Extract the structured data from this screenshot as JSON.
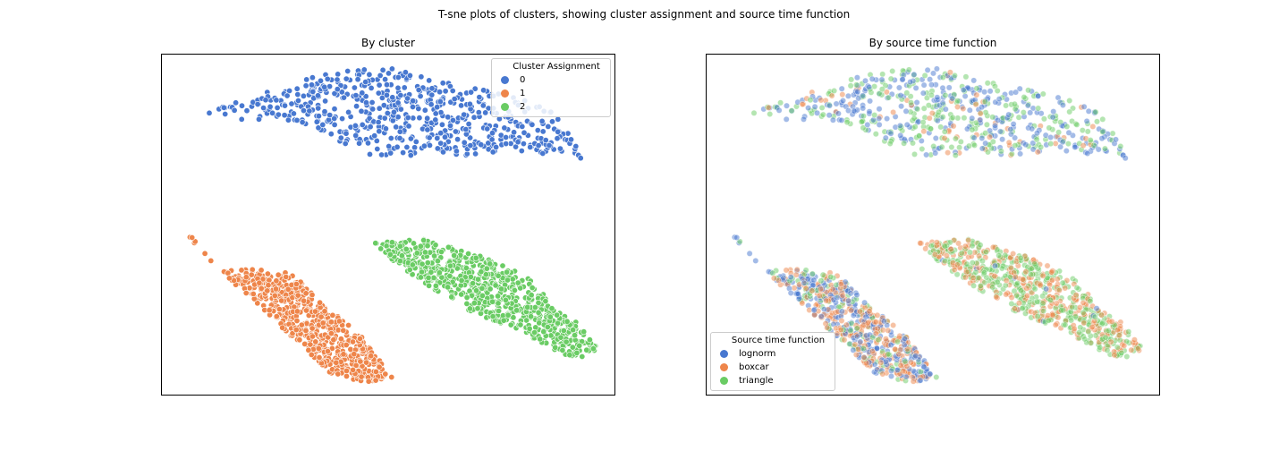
{
  "figure": {
    "suptitle": "T-sne plots of clusters, showing cluster assignment and source time function"
  },
  "chart_data": [
    {
      "type": "scatter",
      "title": "By cluster",
      "xlabel": "",
      "ylabel": "",
      "axes_ticks": "hidden",
      "grid": false,
      "legend": {
        "title": "Cluster Assignment",
        "placement": "top-right"
      },
      "series": [
        {
          "name": "0",
          "color": "#4878d0",
          "region": {
            "description": "elongated top band",
            "outline": [
              [
                -36,
                34
              ],
              [
                -20,
                40
              ],
              [
                -10,
                43
              ],
              [
                2,
                44
              ],
              [
                12,
                41
              ],
              [
                22,
                39
              ],
              [
                30,
                37
              ],
              [
                38,
                33
              ],
              [
                42,
                27
              ],
              [
                44,
                23
              ],
              [
                38,
                24
              ],
              [
                30,
                25
              ],
              [
                18,
                24
              ],
              [
                8,
                24
              ],
              [
                -2,
                24
              ],
              [
                -10,
                28
              ],
              [
                -18,
                32
              ],
              [
                -28,
                32
              ],
              [
                -36,
                33
              ]
            ]
          },
          "count_est": 1300
        },
        {
          "name": "1",
          "color": "#ee854a",
          "region": {
            "description": "diagonal band lower-left",
            "outline": [
              [
                -43,
                10
              ],
              [
                -38,
                3
              ],
              [
                -34,
                -2
              ],
              [
                -26,
                -2
              ],
              [
                -18,
                -3
              ],
              [
                -12,
                -10
              ],
              [
                -4,
                -17
              ],
              [
                3,
                -27
              ],
              [
                -2,
                -28
              ],
              [
                -10,
                -26
              ],
              [
                -18,
                -18
              ],
              [
                -26,
                -10
              ],
              [
                -34,
                -2
              ],
              [
                -40,
                5
              ]
            ]
          },
          "count_est": 1400
        },
        {
          "name": "2",
          "color": "#6acc64",
          "region": {
            "description": "wide diagonal band lower-right",
            "outline": [
              [
                -2,
                4
              ],
              [
                10,
                5
              ],
              [
                22,
                1
              ],
              [
                30,
                -3
              ],
              [
                34,
                -6
              ],
              [
                36,
                -10
              ],
              [
                42,
                -14
              ],
              [
                46,
                -20
              ],
              [
                44,
                -22
              ],
              [
                38,
                -22
              ],
              [
                30,
                -16
              ],
              [
                20,
                -12
              ],
              [
                12,
                -7
              ],
              [
                4,
                -1
              ]
            ]
          },
          "count_est": 1500
        }
      ],
      "xlim": [
        -46,
        50
      ],
      "ylim": [
        -31,
        47
      ]
    },
    {
      "type": "scatter",
      "title": "By source time function",
      "xlabel": "",
      "ylabel": "",
      "axes_ticks": "hidden",
      "grid": false,
      "point_alpha": 0.5,
      "legend": {
        "title": "Source time function",
        "placement": "bottom-left"
      },
      "series": [
        {
          "name": "lognorm",
          "color": "#4878d0"
        },
        {
          "name": "boxcar",
          "color": "#ee854a"
        },
        {
          "name": "triangle",
          "color": "#6acc64"
        }
      ],
      "mix_by_cluster": [
        {
          "cluster": "top band",
          "lognorm": 0.45,
          "boxcar": 0.1,
          "triangle": 0.45
        },
        {
          "cluster": "lower-left band",
          "lognorm": 0.45,
          "boxcar": 0.4,
          "triangle": 0.15
        },
        {
          "cluster": "lower-right band",
          "lognorm": 0.02,
          "boxcar": 0.45,
          "triangle": 0.53
        }
      ],
      "xlim": [
        -46,
        50
      ],
      "ylim": [
        -31,
        47
      ]
    }
  ]
}
